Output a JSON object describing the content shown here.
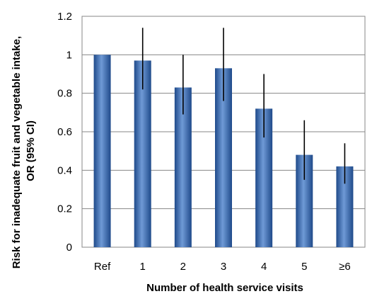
{
  "chart_data": {
    "type": "bar",
    "title": "",
    "xlabel": "Number of health service visits",
    "ylabel_lines": [
      "Risk for inadequate fruit and vegetable intake,",
      "OR (95% CI)"
    ],
    "categories": [
      "Ref",
      "1",
      "2",
      "3",
      "4",
      "5",
      "≥6"
    ],
    "values": [
      1.0,
      0.97,
      0.83,
      0.93,
      0.72,
      0.48,
      0.42
    ],
    "ci_lower": [
      1.0,
      0.82,
      0.69,
      0.76,
      0.57,
      0.35,
      0.33
    ],
    "ci_upper": [
      1.0,
      1.14,
      1.0,
      1.14,
      0.9,
      0.66,
      0.54
    ],
    "ylim": [
      0,
      1.2
    ],
    "yticks": [
      "0",
      "0.2",
      "0.4",
      "0.6",
      "0.8",
      "1",
      "1.2"
    ],
    "ytick_values": [
      0,
      0.2,
      0.4,
      0.6,
      0.8,
      1.0,
      1.2
    ],
    "grid": true,
    "colors": {
      "bar_dark": "#1f4a8a",
      "bar_mid": "#4a7cc4",
      "bar_light": "#6f9ad6",
      "plot_background": "#ffffff",
      "grid": "#878787",
      "plot_border": "#878787",
      "error_bar": "#000000"
    }
  }
}
